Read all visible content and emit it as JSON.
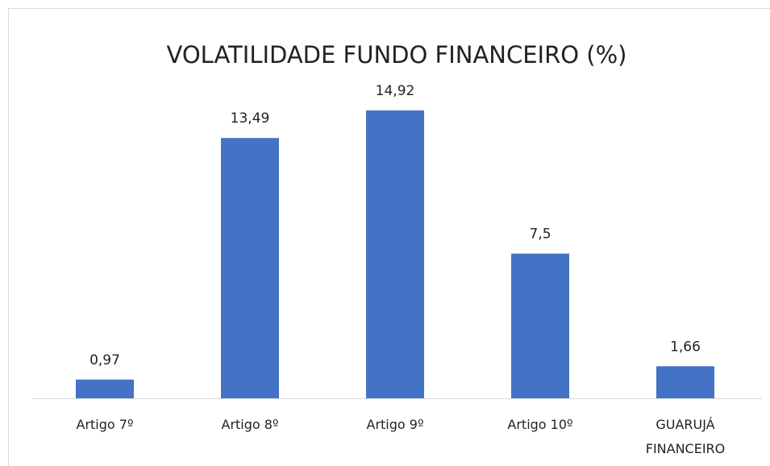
{
  "chart_data": {
    "type": "bar",
    "title": "VOLATILIDADE FUNDO FINANCEIRO (%)",
    "categories": [
      "Artigo 7º",
      "Artigo 8º",
      "Artigo 9º",
      "Artigo 10º",
      "GUARUJÁ FINANCEIRO"
    ],
    "values": [
      0.97,
      13.49,
      14.92,
      7.5,
      1.66
    ],
    "value_labels": [
      "0,97",
      "13,49",
      "14,92",
      "7,5",
      "1,66"
    ],
    "color": "#4472c4"
  }
}
